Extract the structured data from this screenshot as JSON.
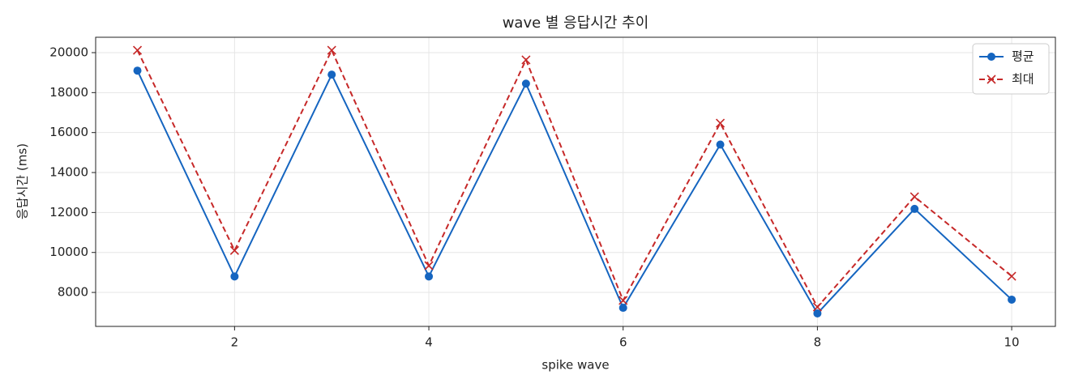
{
  "chart_data": {
    "type": "line",
    "title": "wave 별 응답시간 추이",
    "x_label": "spike wave",
    "y_label": "응답시간 (ms)",
    "x": [
      1,
      2,
      3,
      4,
      5,
      6,
      7,
      8,
      9,
      10
    ],
    "series": [
      {
        "name": "평균",
        "color": "#1565c0",
        "marker": "circle",
        "dash": "solid",
        "values": [
          19100,
          8800,
          18900,
          8800,
          18450,
          7230,
          15400,
          6950,
          12180,
          7640
        ]
      },
      {
        "name": "최대",
        "color": "#c62828",
        "marker": "x",
        "dash": "dashed",
        "values": [
          20120,
          10100,
          20120,
          9340,
          19640,
          7600,
          16470,
          7270,
          12790,
          8810
        ]
      }
    ],
    "xlim": [
      0.57,
      10.45
    ],
    "ylim": [
      6300,
      20770
    ],
    "xticks": [
      2,
      4,
      6,
      8,
      10
    ],
    "yticks": [
      8000,
      10000,
      12000,
      14000,
      16000,
      18000,
      20000
    ],
    "grid": true,
    "legend": "upper right"
  }
}
